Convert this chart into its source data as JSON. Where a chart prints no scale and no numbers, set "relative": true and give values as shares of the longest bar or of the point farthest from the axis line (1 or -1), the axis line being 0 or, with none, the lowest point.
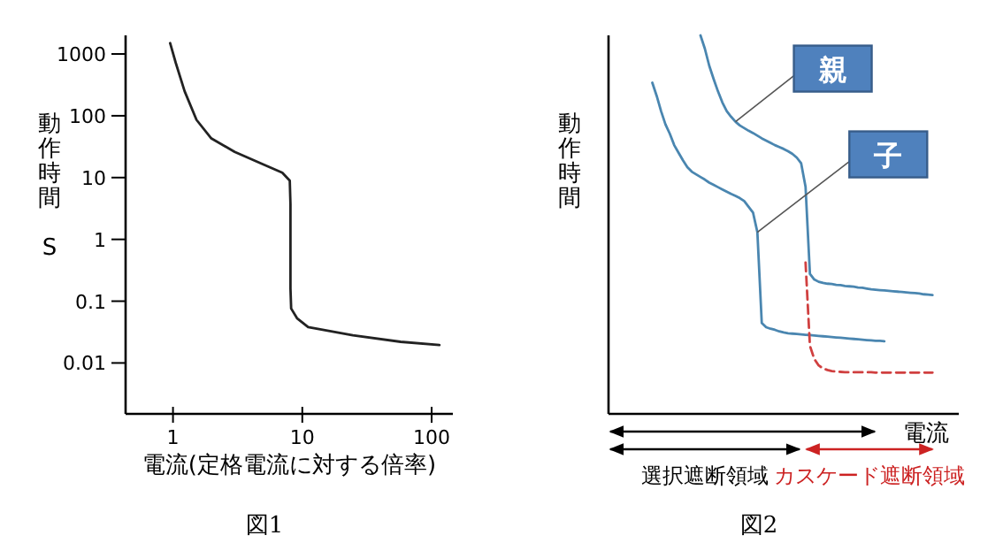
{
  "chart_data": [
    {
      "type": "line",
      "title": "図1",
      "xlabel": "電流(定格電流に対する倍率)",
      "ylabel": "動作時間 S",
      "log": "xy",
      "xlim": [
        0.43,
        146
      ],
      "ylim": [
        0.0015,
        2000
      ],
      "xticks": [
        1,
        10,
        100
      ],
      "yticks": [
        0.01,
        0.1,
        1,
        10,
        100,
        1000
      ],
      "series": [
        {
          "color": "#222222",
          "x": [
            0.95,
            1.05,
            1.23,
            1.52,
            1.98,
            3.0,
            5.1,
            7.0,
            8.0,
            8.1,
            8.1,
            8.1,
            8.2,
            9.1,
            11.1,
            24.6,
            57.6,
            115
          ],
          "values": [
            1500,
            720,
            250,
            86,
            43,
            26,
            16,
            12,
            8.9,
            3.7,
            0.68,
            0.16,
            0.076,
            0.053,
            0.038,
            0.028,
            0.022,
            0.0195
          ]
        }
      ]
    },
    {
      "type": "line",
      "title": "図2",
      "xlabel": "電流",
      "ylabel": "動作時間",
      "relative": true,
      "categories": [
        null,
        null,
        null,
        null,
        null,
        null,
        null,
        null,
        null,
        null,
        null,
        null,
        null,
        null,
        null,
        null,
        null,
        null,
        null,
        null,
        null,
        null,
        null,
        null,
        null,
        null,
        null,
        null,
        null,
        null,
        null,
        null,
        null,
        null,
        null,
        null,
        null,
        null,
        null,
        null,
        null,
        null,
        null,
        null,
        null,
        null,
        null,
        null,
        null,
        null,
        null,
        null,
        null,
        null,
        null,
        null,
        null,
        null,
        null,
        null,
        null,
        null,
        null,
        null,
        null,
        null,
        null,
        null,
        null,
        null,
        null,
        null,
        null,
        null,
        null,
        null,
        null,
        null,
        null,
        null,
        null
      ],
      "series": [
        {
          "name": "親",
          "color": "#4a86b0",
          "values": [
            null,
            null,
            null,
            null,
            null,
            null,
            null,
            null,
            null,
            null,
            null,
            null,
            null,
            null,
            null,
            null,
            null,
            null,
            null,
            null,
            null,
            1.0,
            0.965,
            0.92,
            0.885,
            0.852,
            0.823,
            0.8,
            0.785,
            0.772,
            0.762,
            0.755,
            0.748,
            0.742,
            0.735,
            0.728,
            0.722,
            0.716,
            0.71,
            0.705,
            0.7,
            0.694,
            0.687,
            0.677,
            0.662,
            0.6,
            0.37,
            0.355,
            0.349,
            0.346,
            0.344,
            0.343,
            0.341,
            0.34,
            0.338,
            0.337,
            0.336,
            0.334,
            0.333,
            0.331,
            0.329,
            0.328,
            0.327,
            0.326,
            0.325,
            0.324,
            0.323,
            0.322,
            0.321,
            0.32,
            0.319,
            0.318,
            0.316,
            0.315,
            0.314,
            null,
            null,
            null,
            null,
            null,
            null
          ]
        },
        {
          "name": "子",
          "color": "#4a86b0",
          "values": [
            null,
            null,
            null,
            null,
            null,
            null,
            null,
            null,
            null,
            null,
            0.875,
            0.84,
            0.8,
            0.765,
            0.74,
            0.71,
            0.69,
            0.67,
            0.652,
            0.64,
            0.633,
            0.626,
            0.619,
            0.611,
            0.605,
            0.599,
            0.593,
            0.587,
            0.581,
            0.576,
            0.57,
            0.562,
            0.547,
            0.532,
            0.48,
            0.24,
            0.229,
            0.225,
            0.222,
            0.218,
            0.215,
            0.213,
            0.212,
            0.211,
            0.21,
            0.209,
            0.208,
            0.207,
            0.206,
            0.205,
            0.204,
            0.203,
            0.202,
            0.201,
            0.2,
            0.199,
            0.198,
            0.197,
            0.196,
            0.195,
            0.194,
            0.193,
            0.193,
            0.192,
            null,
            null,
            null,
            null,
            null,
            null,
            null,
            null,
            null,
            null,
            null,
            null,
            null,
            null,
            null,
            null,
            null
          ]
        },
        {
          "color": "#d04040",
          "line_style": "dashed",
          "values": [
            null,
            null,
            null,
            null,
            null,
            null,
            null,
            null,
            null,
            null,
            null,
            null,
            null,
            null,
            null,
            null,
            null,
            null,
            null,
            null,
            null,
            null,
            null,
            null,
            null,
            null,
            null,
            null,
            null,
            null,
            null,
            null,
            null,
            null,
            null,
            null,
            null,
            null,
            null,
            null,
            null,
            null,
            null,
            null,
            null,
            0.4,
            0.18,
            0.145,
            0.128,
            0.12,
            0.116,
            0.113,
            0.112,
            0.111,
            0.11,
            0.11,
            0.11,
            0.11,
            0.11,
            0.11,
            0.11,
            0.109,
            0.109,
            0.109,
            0.109,
            0.109,
            0.109,
            0.109,
            0.109,
            0.109,
            0.109,
            0.109,
            0.109,
            0.109,
            0.109,
            null,
            null,
            null,
            null,
            null,
            null
          ]
        }
      ],
      "annotations": [
        "選択遮断領域",
        "カスケード遮断領域"
      ]
    }
  ]
}
